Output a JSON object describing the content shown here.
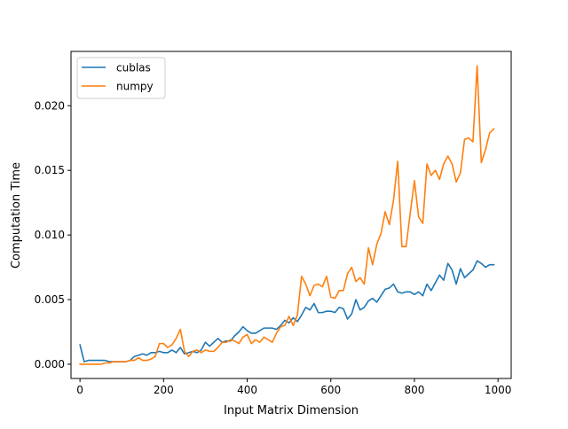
{
  "chart_data": {
    "type": "line",
    "title": "",
    "xlabel": "Input Matrix Dimension",
    "ylabel": "Computation Time",
    "xlim": [
      -21.5,
      1031.5
    ],
    "ylim": [
      -0.0011,
      0.0242
    ],
    "xticks": [
      0,
      200,
      400,
      600,
      800,
      1000
    ],
    "xtick_labels": [
      "0",
      "200",
      "400",
      "600",
      "800",
      "1000"
    ],
    "yticks": [
      0.0,
      0.005,
      0.01,
      0.015,
      0.02
    ],
    "ytick_labels": [
      "0.000",
      "0.005",
      "0.010",
      "0.015",
      "0.020"
    ],
    "grid": false,
    "legend_position": "top-left",
    "x": [
      0,
      10,
      20,
      30,
      40,
      50,
      60,
      70,
      80,
      90,
      100,
      110,
      120,
      130,
      140,
      150,
      160,
      170,
      180,
      190,
      200,
      210,
      220,
      230,
      240,
      250,
      260,
      270,
      280,
      290,
      300,
      310,
      320,
      330,
      340,
      350,
      360,
      370,
      380,
      390,
      400,
      410,
      420,
      430,
      440,
      450,
      460,
      470,
      480,
      490,
      500,
      510,
      520,
      530,
      540,
      550,
      560,
      570,
      580,
      590,
      600,
      610,
      620,
      630,
      640,
      650,
      660,
      670,
      680,
      690,
      700,
      710,
      720,
      730,
      740,
      750,
      760,
      770,
      780,
      790,
      800,
      810,
      820,
      830,
      840,
      850,
      860,
      870,
      880,
      890,
      900,
      910,
      920,
      930,
      940,
      950,
      960,
      970,
      980,
      990
    ],
    "series": [
      {
        "name": "cublas",
        "color": "#1f77b4",
        "values": [
          0.0015,
          0.0002,
          0.0003,
          0.0003,
          0.0003,
          0.0003,
          0.0003,
          0.0002,
          0.0002,
          0.0002,
          0.0002,
          0.0002,
          0.0003,
          0.0006,
          0.0007,
          0.0008,
          0.0007,
          0.0009,
          0.0009,
          0.001,
          0.0009,
          0.0009,
          0.0011,
          0.0009,
          0.0013,
          0.0008,
          0.0009,
          0.001,
          0.0009,
          0.0011,
          0.0017,
          0.0014,
          0.0017,
          0.002,
          0.0017,
          0.0018,
          0.0018,
          0.0022,
          0.0025,
          0.0029,
          0.0026,
          0.0024,
          0.0024,
          0.0026,
          0.0028,
          0.0028,
          0.0028,
          0.0027,
          0.003,
          0.0034,
          0.0032,
          0.0036,
          0.0033,
          0.0038,
          0.0044,
          0.0042,
          0.0047,
          0.004,
          0.004,
          0.0041,
          0.0041,
          0.004,
          0.0044,
          0.0043,
          0.0035,
          0.0039,
          0.005,
          0.0042,
          0.0044,
          0.0049,
          0.0051,
          0.0048,
          0.0053,
          0.0058,
          0.0059,
          0.0062,
          0.0056,
          0.0055,
          0.0056,
          0.0056,
          0.0054,
          0.0056,
          0.0053,
          0.0062,
          0.0057,
          0.0063,
          0.0069,
          0.0065,
          0.0078,
          0.0073,
          0.0062,
          0.0074,
          0.0067,
          0.007,
          0.0073,
          0.008,
          0.0078,
          0.0075,
          0.0077,
          0.0077
        ]
      },
      {
        "name": "numpy",
        "color": "#ff7f0e",
        "values": [
          0.0,
          0.0,
          0.0,
          0.0,
          0.0,
          0.0,
          0.0001,
          0.0001,
          0.0002,
          0.0002,
          0.0002,
          0.0002,
          0.0003,
          0.0003,
          0.0005,
          0.0003,
          0.0003,
          0.0004,
          0.0006,
          0.0016,
          0.0016,
          0.0013,
          0.0015,
          0.002,
          0.0027,
          0.001,
          0.0006,
          0.001,
          0.0011,
          0.0009,
          0.0011,
          0.001,
          0.001,
          0.0013,
          0.0017,
          0.0017,
          0.0019,
          0.0018,
          0.0016,
          0.0021,
          0.0023,
          0.0016,
          0.0019,
          0.0017,
          0.0021,
          0.0019,
          0.0017,
          0.0024,
          0.0029,
          0.003,
          0.0037,
          0.003,
          0.0038,
          0.0068,
          0.0062,
          0.0053,
          0.0061,
          0.0062,
          0.006,
          0.0068,
          0.0052,
          0.0051,
          0.0057,
          0.0057,
          0.007,
          0.0075,
          0.0064,
          0.0067,
          0.0062,
          0.009,
          0.0077,
          0.0093,
          0.0101,
          0.0118,
          0.0108,
          0.0127,
          0.0157,
          0.0091,
          0.0091,
          0.0117,
          0.0142,
          0.0114,
          0.0109,
          0.0155,
          0.0146,
          0.015,
          0.0143,
          0.0155,
          0.0161,
          0.0155,
          0.0141,
          0.0148,
          0.0174,
          0.0175,
          0.0172,
          0.0231,
          0.0156,
          0.0166,
          0.0179,
          0.0182
        ]
      }
    ]
  }
}
